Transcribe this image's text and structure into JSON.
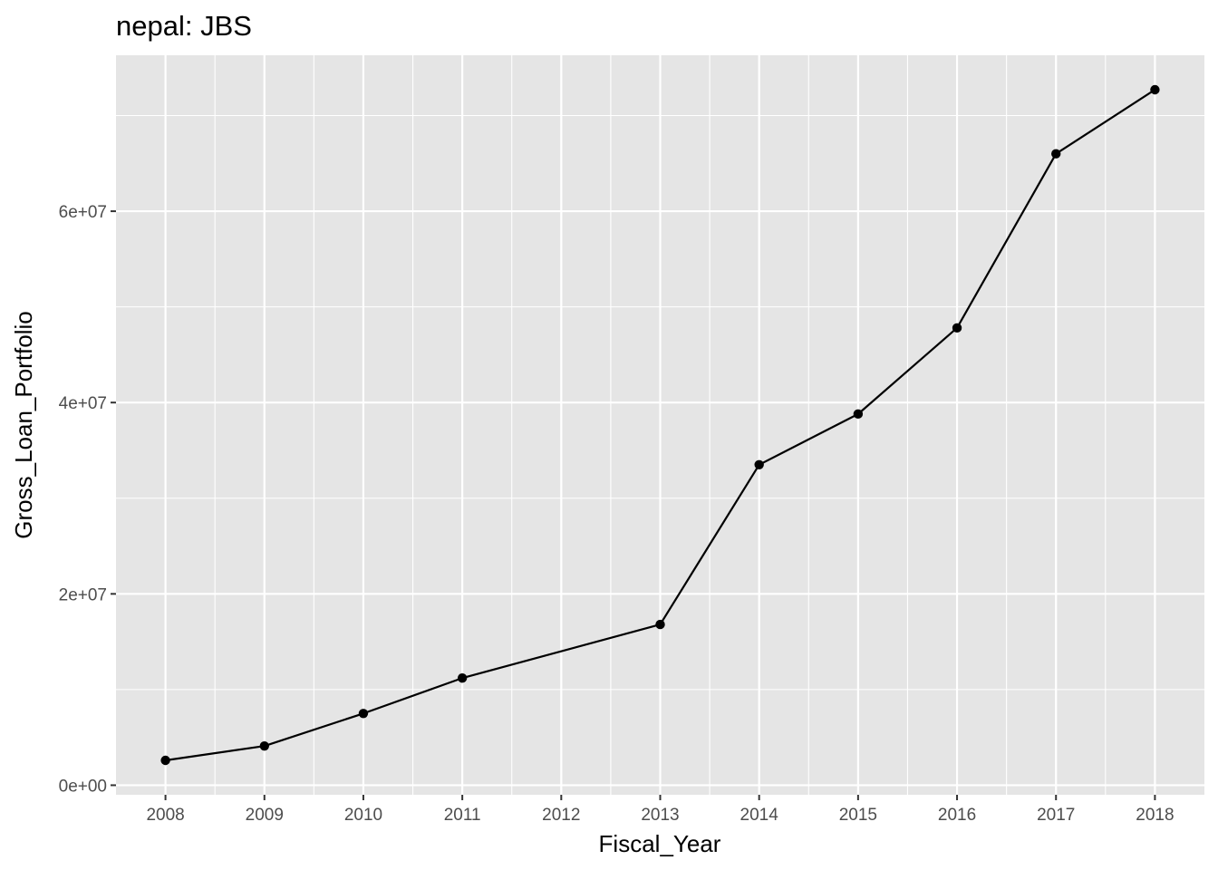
{
  "chart_data": {
    "type": "line",
    "title": "nepal:  JBS",
    "xlabel": "Fiscal_Year",
    "ylabel": "Gross_Loan_Portfolio",
    "x": [
      2008,
      2009,
      2010,
      2011,
      2013,
      2014,
      2015,
      2016,
      2017,
      2018
    ],
    "y": [
      2600000,
      4100000,
      7500000,
      11200000,
      16800000,
      33500000,
      38800000,
      47800000,
      66000000,
      72700000
    ],
    "xlim": [
      2007.5,
      2018.5
    ],
    "ylim": [
      -1000000,
      76300000
    ],
    "x_ticks": [
      2008,
      2009,
      2010,
      2011,
      2012,
      2013,
      2014,
      2015,
      2016,
      2017,
      2018
    ],
    "x_tick_labels": [
      "2008",
      "2009",
      "2010",
      "2011",
      "2012",
      "2013",
      "2014",
      "2015",
      "2016",
      "2017",
      "2018"
    ],
    "y_ticks": [
      0,
      20000000,
      40000000,
      60000000
    ],
    "y_tick_labels": [
      "0e+00",
      "2e+07",
      "4e+07",
      "6e+07"
    ],
    "grid": true,
    "legend": "none",
    "colors": {
      "panel": "#e5e5e5",
      "grid": "#ffffff",
      "line": "#000000",
      "point": "#000000",
      "tick_text": "#4d4d4d",
      "tick_mark": "#333333"
    }
  }
}
